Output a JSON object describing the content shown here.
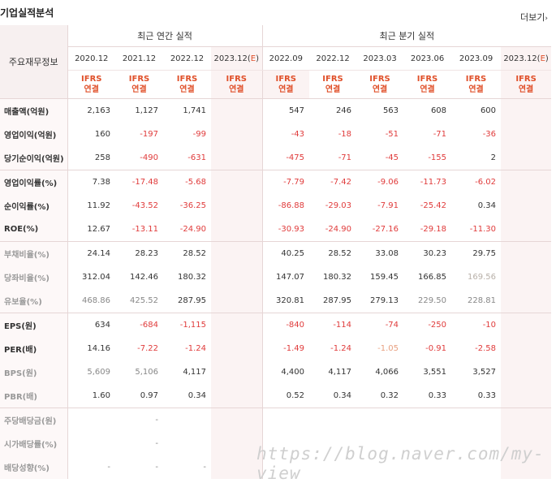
{
  "title": "기업실적분석",
  "more_label": "더보기",
  "header": {
    "row_label": "주요재무정보",
    "annual_group": "최근 연간 실적",
    "quarter_group": "최근 분기 실적",
    "annual_periods": [
      "2020.12",
      "2021.12",
      "2022.12"
    ],
    "annual_estimate": "2023.12(E)",
    "quarter_periods": [
      "2022.09",
      "2022.12",
      "2023.03",
      "2023.06",
      "2023.09"
    ],
    "quarter_estimate": "2023.12(E)",
    "ifrs_top": "IFRS",
    "ifrs_bottom": "연결"
  },
  "rows": [
    {
      "label": "매출액(억원)",
      "annual": [
        "2,163",
        "1,127",
        "1,741"
      ],
      "quarter": [
        "547",
        "246",
        "563",
        "608",
        "600"
      ]
    },
    {
      "label": "영업이익(억원)",
      "annual": [
        "160",
        "-197",
        "-99"
      ],
      "quarter": [
        "-43",
        "-18",
        "-51",
        "-71",
        "-36"
      ]
    },
    {
      "label": "당기순이익(억원)",
      "annual": [
        "258",
        "-490",
        "-631"
      ],
      "quarter": [
        "-475",
        "-71",
        "-45",
        "-155",
        "2"
      ]
    },
    {
      "label": "영업이익률(%)",
      "annual": [
        "7.38",
        "-17.48",
        "-5.68"
      ],
      "quarter": [
        "-7.79",
        "-7.42",
        "-9.06",
        "-11.73",
        "-6.02"
      ]
    },
    {
      "label": "순이익률(%)",
      "annual": [
        "11.92",
        "-43.52",
        "-36.25"
      ],
      "quarter": [
        "-86.88",
        "-29.03",
        "-7.91",
        "-25.42",
        "0.34"
      ]
    },
    {
      "label": "ROE(%)",
      "annual": [
        "12.67",
        "-13.11",
        "-24.90"
      ],
      "quarter": [
        "-30.93",
        "-24.90",
        "-27.16",
        "-29.18",
        "-11.30"
      ]
    },
    {
      "label": "부채비율(%)",
      "annual": [
        "24.14",
        "28.23",
        "28.52"
      ],
      "quarter": [
        "40.25",
        "28.52",
        "33.08",
        "30.23",
        "29.75"
      ]
    },
    {
      "label": "당좌비율(%)",
      "annual": [
        "312.04",
        "142.46",
        "180.32"
      ],
      "quarter": [
        "147.07",
        "180.32",
        "159.45",
        "166.85",
        "169.56"
      ]
    },
    {
      "label": "유보율(%)",
      "annual": [
        "468.86",
        "425.52",
        "287.95"
      ],
      "quarter": [
        "320.81",
        "287.95",
        "279.13",
        "229.50",
        "228.81"
      ]
    },
    {
      "label": "EPS(원)",
      "annual": [
        "634",
        "-684",
        "-1,115"
      ],
      "quarter": [
        "-840",
        "-114",
        "-74",
        "-250",
        "-10"
      ]
    },
    {
      "label": "PER(배)",
      "annual": [
        "14.16",
        "-7.22",
        "-1.24"
      ],
      "quarter": [
        "-1.49",
        "-1.24",
        "-1.05",
        "-0.91",
        "-2.58"
      ]
    },
    {
      "label": "BPS(원)",
      "annual": [
        "5,609",
        "5,106",
        "4,117"
      ],
      "quarter": [
        "4,400",
        "4,117",
        "4,066",
        "3,551",
        "3,527"
      ]
    },
    {
      "label": "PBR(배)",
      "annual": [
        "1.60",
        "0.97",
        "0.34"
      ],
      "quarter": [
        "0.52",
        "0.34",
        "0.32",
        "0.33",
        "0.33"
      ]
    },
    {
      "label": "주당배당금(원)",
      "annual": [
        "",
        "-",
        ""
      ],
      "quarter": [
        "",
        "",
        "",
        "",
        ""
      ]
    },
    {
      "label": "시가배당률(%)",
      "annual": [
        "",
        "-",
        ""
      ],
      "quarter": [
        "",
        "",
        "",
        "",
        ""
      ]
    },
    {
      "label": "배당성향(%)",
      "annual": [
        "-",
        "-",
        "-"
      ],
      "quarter": [
        "",
        "",
        "",
        "",
        ""
      ]
    }
  ],
  "watermark": "https://blog.naver.com/my-view"
}
